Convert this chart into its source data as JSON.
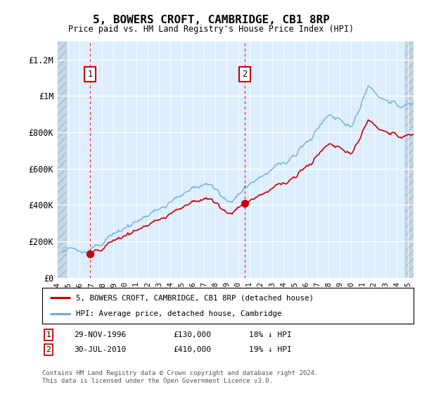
{
  "title": "5, BOWERS CROFT, CAMBRIDGE, CB1 8RP",
  "subtitle": "Price paid vs. HM Land Registry's House Price Index (HPI)",
  "footer": "Contains HM Land Registry data © Crown copyright and database right 2024.\nThis data is licensed under the Open Government Licence v3.0.",
  "legend_line1": "5, BOWERS CROFT, CAMBRIDGE, CB1 8RP (detached house)",
  "legend_line2": "HPI: Average price, detached house, Cambridge",
  "annotation1_label": "1",
  "annotation1_date": "29-NOV-1996",
  "annotation1_price": "£130,000",
  "annotation1_hpi": "18% ↓ HPI",
  "annotation2_label": "2",
  "annotation2_date": "30-JUL-2010",
  "annotation2_price": "£410,000",
  "annotation2_hpi": "19% ↓ HPI",
  "yticks": [
    0,
    200000,
    400000,
    600000,
    800000,
    1000000,
    1200000
  ],
  "ytick_labels": [
    "£0",
    "£200K",
    "£400K",
    "£600K",
    "£800K",
    "£1M",
    "£1.2M"
  ],
  "ylim_max": 1300000,
  "xmin": 1994.0,
  "xmax": 2025.5,
  "red_color": "#cc0000",
  "blue_color": "#6aaed6",
  "chart_bg": "#ddeeff",
  "grid_color": "#ffffff",
  "ann1_x": 1996.91,
  "ann1_y": 130000,
  "ann2_x": 2010.58,
  "ann2_y": 410000,
  "hpi_start_year": 1994.5,
  "hpi_end_year": 2025.2
}
